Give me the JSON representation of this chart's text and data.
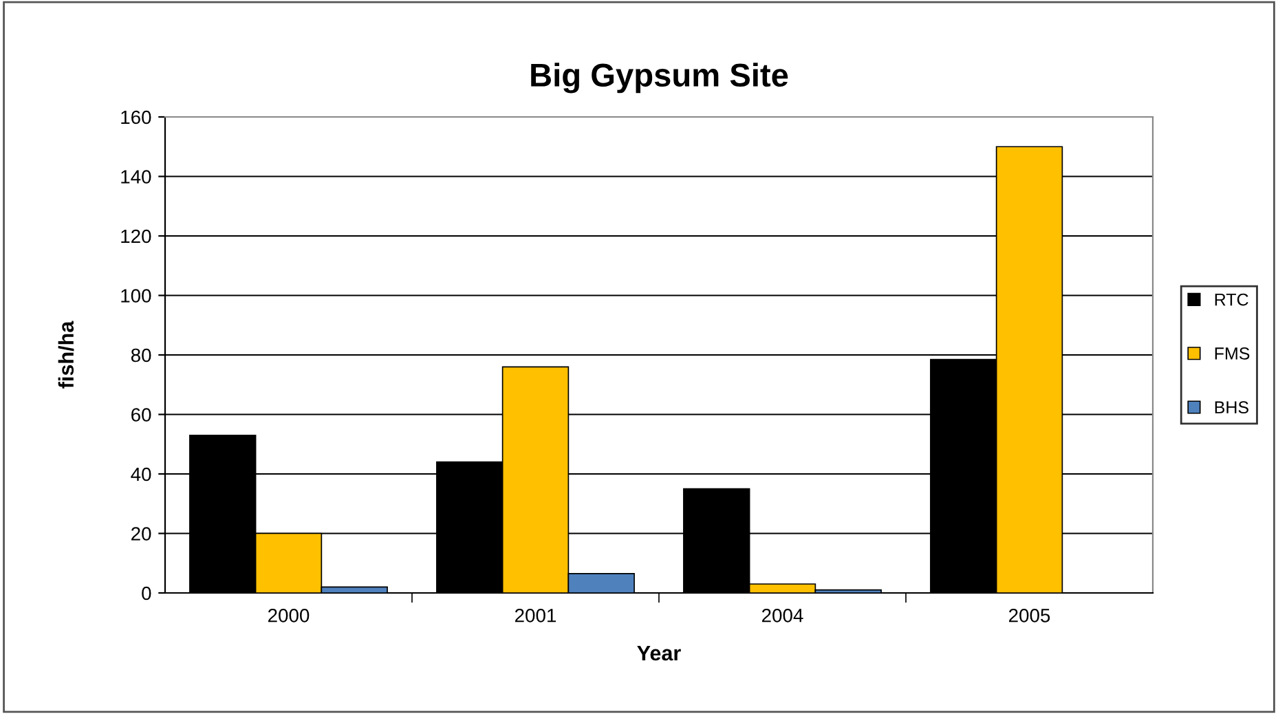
{
  "chart_data": {
    "type": "bar",
    "title": "Big Gypsum Site",
    "xlabel": "Year",
    "ylabel": "fish/ha",
    "categories": [
      "2000",
      "2001",
      "2004",
      "2005"
    ],
    "series": [
      {
        "name": "RTC",
        "color": "#000000",
        "values": [
          53,
          44,
          35,
          78.5
        ]
      },
      {
        "name": "FMS",
        "color": "#ffc000",
        "values": [
          20,
          76,
          3,
          150
        ]
      },
      {
        "name": "BHS",
        "color": "#4f81bd",
        "values": [
          2,
          6.5,
          1,
          null
        ]
      }
    ],
    "ylim": [
      0,
      160
    ],
    "yticks": [
      0,
      20,
      40,
      60,
      80,
      100,
      120,
      140,
      160
    ],
    "grid": "y",
    "legend": "right"
  }
}
